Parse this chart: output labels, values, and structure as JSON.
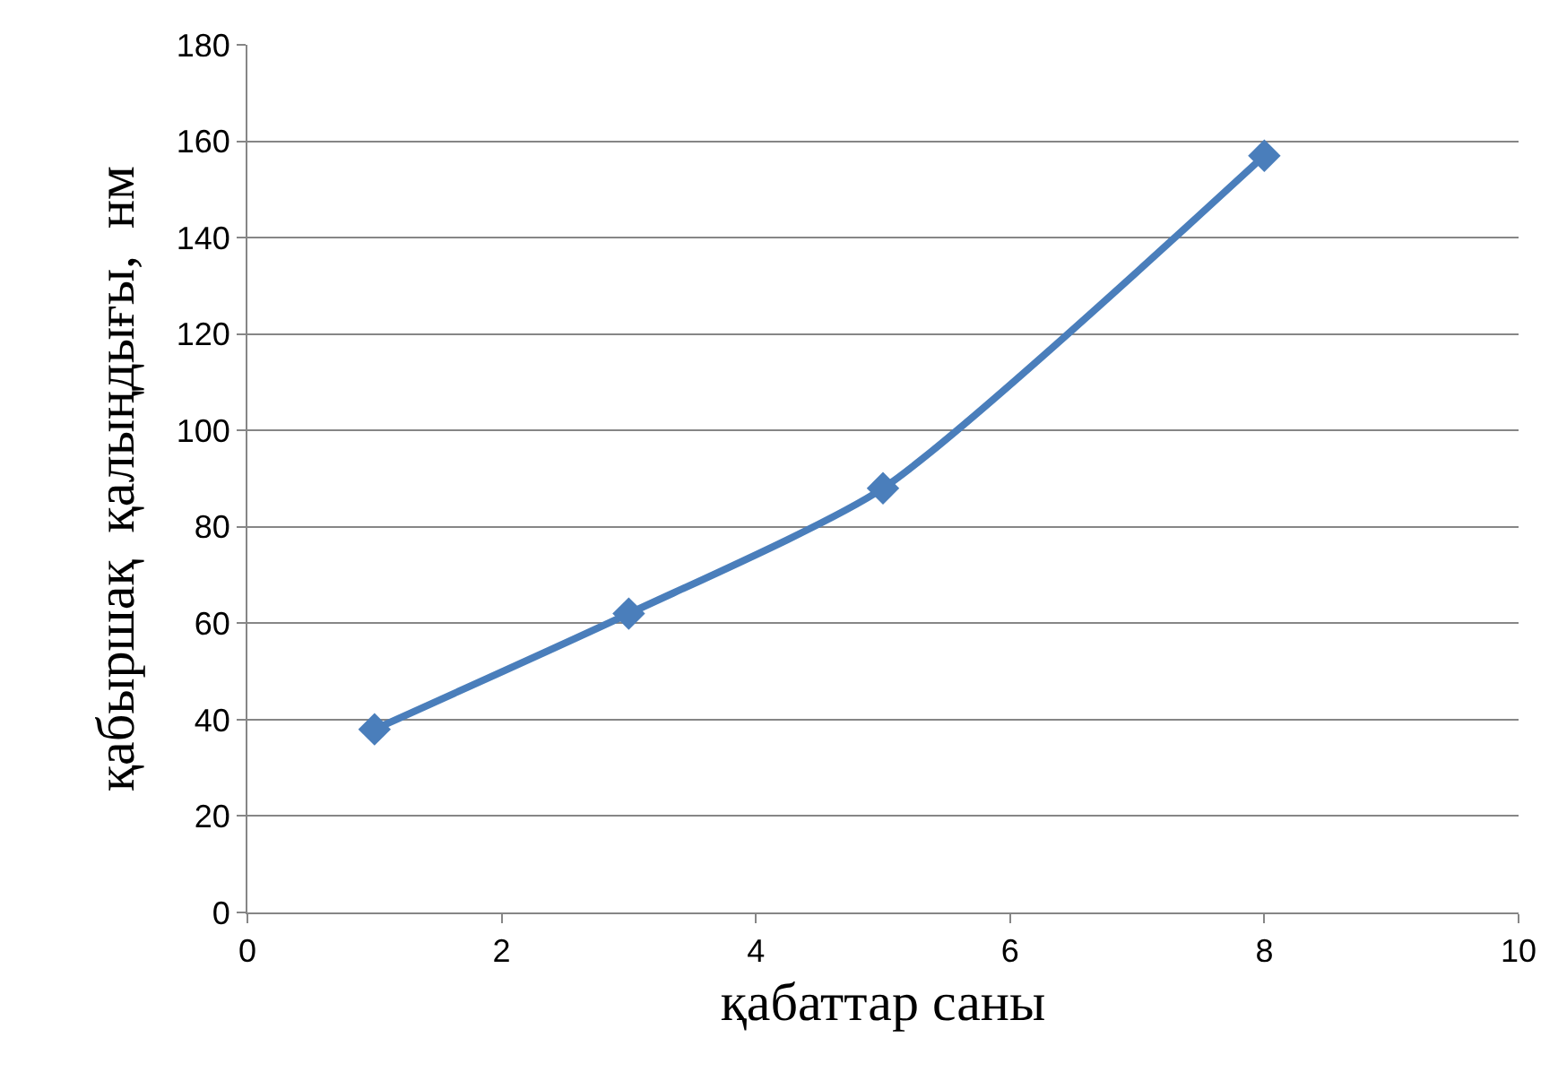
{
  "chart_data": {
    "type": "line",
    "xlabel": "қабаттар саны",
    "ylabel": "қабыршақ  қалыңдығы,  нм",
    "x": [
      1,
      3,
      5,
      8
    ],
    "series": [
      {
        "color": "#4a7ebb",
        "values": [
          38,
          62,
          88,
          157
        ]
      }
    ],
    "xlim": [
      0,
      10
    ],
    "xticks": [
      0,
      2,
      4,
      6,
      8,
      10
    ],
    "ylim": [
      0,
      180
    ],
    "yticks": [
      0,
      20,
      40,
      60,
      80,
      100,
      120,
      140,
      160,
      180
    ],
    "grid": "y",
    "marker": "diamond",
    "line_style": "solid",
    "legend": false
  }
}
